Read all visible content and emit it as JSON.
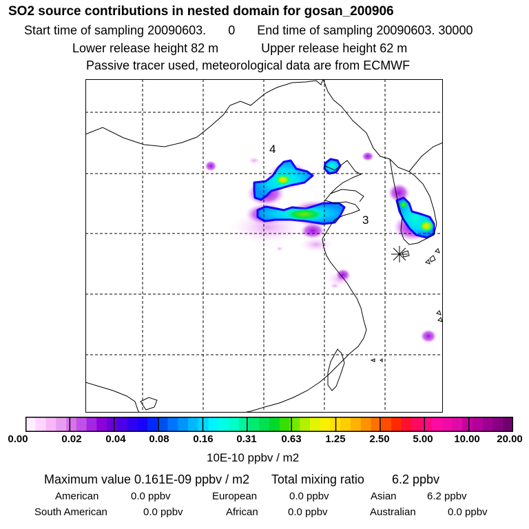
{
  "header": {
    "title": "SO2 source contributions in nested domain for gosan_200906",
    "start_label": "Start time of sampling 20090603.",
    "start_value": "0",
    "end_label": "End time of sampling 20090603. 30000",
    "lower_release": "Lower release height   82 m",
    "upper_release": "Upper release height   62 m",
    "note": "Passive tracer used, meteorological data are from ECMWF"
  },
  "map": {
    "region_labels": [
      "4",
      "3"
    ],
    "receptor_marker": "asterisk-site-marker",
    "colors": {
      "grid": "#000000",
      "coast": "#000000",
      "frame": "#000000"
    }
  },
  "colorbar": {
    "tick_labels": [
      "0.00",
      "0.02",
      "0.04",
      "0.08",
      "0.16",
      "0.31",
      "0.63",
      "1.25",
      "2.50",
      "5.00",
      "10.00",
      "20.00"
    ],
    "colors": [
      "#ffeeff",
      "#ffd6ff",
      "#f8b8f8",
      "#e89ef0",
      "#d774e9",
      "#c050ea",
      "#a426e2",
      "#8c00dc",
      "#6a00d6",
      "#4b00e8",
      "#3000f2",
      "#1a00ff",
      "#0028ff",
      "#0050f0",
      "#0074ff",
      "#0094ff",
      "#00b8ff",
      "#00d7ff",
      "#00f3ff",
      "#00ffe6",
      "#00ffc8",
      "#00f59a",
      "#00ea6e",
      "#00e050",
      "#00d928",
      "#35e000",
      "#74ea00",
      "#b2f000",
      "#e3f400",
      "#f9f000",
      "#ffe000",
      "#ffcc00",
      "#ffb200",
      "#ff9200",
      "#ff7000",
      "#ff4c00",
      "#ff2a00",
      "#ff1030",
      "#ff0a60",
      "#ff0a80",
      "#ff0aa2",
      "#f00aa8",
      "#e00aa8",
      "#c800a0",
      "#b4009a",
      "#9c0090",
      "#880082",
      "#70006e"
    ],
    "unit": "10E-10 ppbv / m2"
  },
  "summary": {
    "max_value": "Maximum value  0.161E-09 ppbv / m2",
    "total": "Total mixing ratio",
    "total_value": "6.2 ppbv",
    "contributions": [
      {
        "name": "American",
        "value": "0.0 ppbv"
      },
      {
        "name": "European",
        "value": "0.0 ppbv"
      },
      {
        "name": "Asian",
        "value": "6.2 ppbv"
      },
      {
        "name": "South American",
        "value": "0.0 ppbv"
      },
      {
        "name": "African",
        "value": "0.0 ppbv"
      },
      {
        "name": "Australian",
        "value": "0.0 ppbv"
      }
    ]
  }
}
